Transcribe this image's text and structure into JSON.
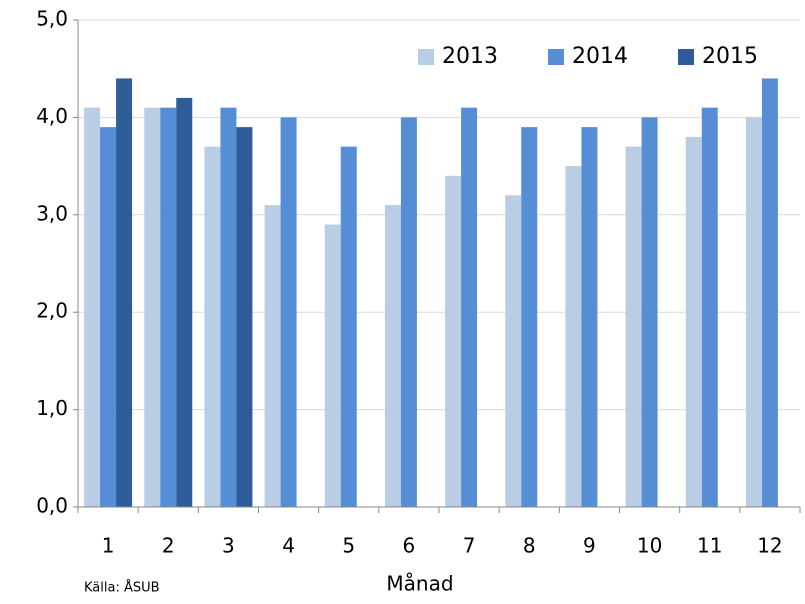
{
  "chart_data": {
    "type": "bar",
    "x_label": "Månad",
    "source": "Källa: ÅSUB",
    "categories": [
      "1",
      "2",
      "3",
      "4",
      "5",
      "6",
      "7",
      "8",
      "9",
      "10",
      "11",
      "12"
    ],
    "series": [
      {
        "name": "2013",
        "color": "#b9cde5",
        "values": [
          4.1,
          4.1,
          3.7,
          3.1,
          2.9,
          3.1,
          3.4,
          3.2,
          3.5,
          3.7,
          3.8,
          4.0
        ]
      },
      {
        "name": "2014",
        "color": "#558ed5",
        "values": [
          3.9,
          4.1,
          4.1,
          4.0,
          3.7,
          4.0,
          4.1,
          3.9,
          3.9,
          4.0,
          4.1,
          4.4
        ]
      },
      {
        "name": "2015",
        "color": "#2e5c98",
        "values": [
          4.4,
          4.2,
          3.9,
          null,
          null,
          null,
          null,
          null,
          null,
          null,
          null,
          null
        ]
      }
    ],
    "ylim": [
      0,
      5
    ],
    "yticks": [
      {
        "value": 0,
        "label": "0,0"
      },
      {
        "value": 1,
        "label": "1,0"
      },
      {
        "value": 2,
        "label": "2,0"
      },
      {
        "value": 3,
        "label": "3,0"
      },
      {
        "value": 4,
        "label": "4,0"
      },
      {
        "value": 5,
        "label": "5,0"
      }
    ],
    "grid": true,
    "legend": "top-right"
  }
}
